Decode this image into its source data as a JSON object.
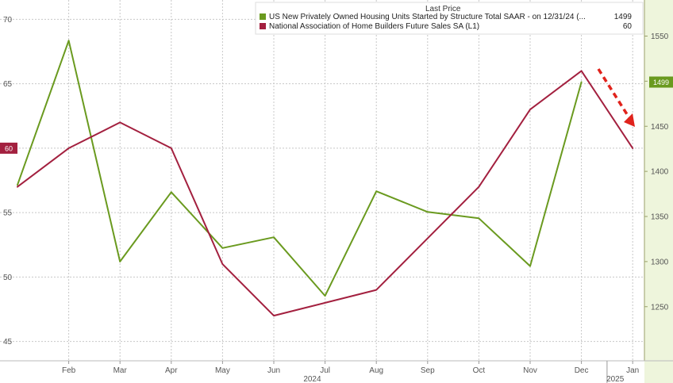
{
  "chart_data": {
    "type": "line",
    "legend": {
      "title": "Last Price",
      "placement": "top-right",
      "entries": [
        {
          "label": "US New Privately Owned Housing Units Started by Structure Total SAAR -  on 12/31/24  (...",
          "value": "1499",
          "color": "#6a9a1f"
        },
        {
          "label": "National Association of Home Builders Future Sales SA  (L1)",
          "value": "60",
          "color": "#a3203f"
        }
      ]
    },
    "x": [
      "Jan",
      "Feb",
      "Mar",
      "Apr",
      "May",
      "Jun",
      "Jul",
      "Aug",
      "Sep",
      "Oct",
      "Nov",
      "Dec",
      "Jan"
    ],
    "x_tick_labels": [
      "Feb",
      "Mar",
      "Apr",
      "May",
      "Jun",
      "Jul",
      "Aug",
      "Sep",
      "Oct",
      "Nov",
      "Dec",
      "Jan"
    ],
    "year_labels": [
      "2024",
      "2025"
    ],
    "left_axis": {
      "ticks": [
        "45",
        "50",
        "55",
        "60",
        "65",
        "70"
      ],
      "ylim": [
        43.5,
        71.5
      ]
    },
    "right_axis": {
      "ticks": [
        "1250",
        "1300",
        "1350",
        "1400",
        "1450",
        "1500",
        "1550"
      ],
      "ylim": [
        1190,
        1590
      ]
    },
    "series": [
      {
        "axis": "right",
        "color": "#6a9a1f",
        "values": [
          1385,
          1545,
          1300,
          1377,
          1315,
          1327,
          1262,
          1378,
          1355,
          1348,
          1295,
          1499,
          null
        ],
        "last_value_label": "1499"
      },
      {
        "axis": "left",
        "color": "#a3203f",
        "values": [
          57,
          60,
          62,
          60,
          51,
          47,
          48,
          49,
          53,
          57,
          63,
          66,
          60
        ],
        "last_value_label": "60"
      }
    ],
    "annotation": {
      "type": "dashed-arrow",
      "direction": "down-right",
      "color": "#e0231c"
    },
    "grid": true,
    "right_axis_band_color": "#eef5dc"
  }
}
